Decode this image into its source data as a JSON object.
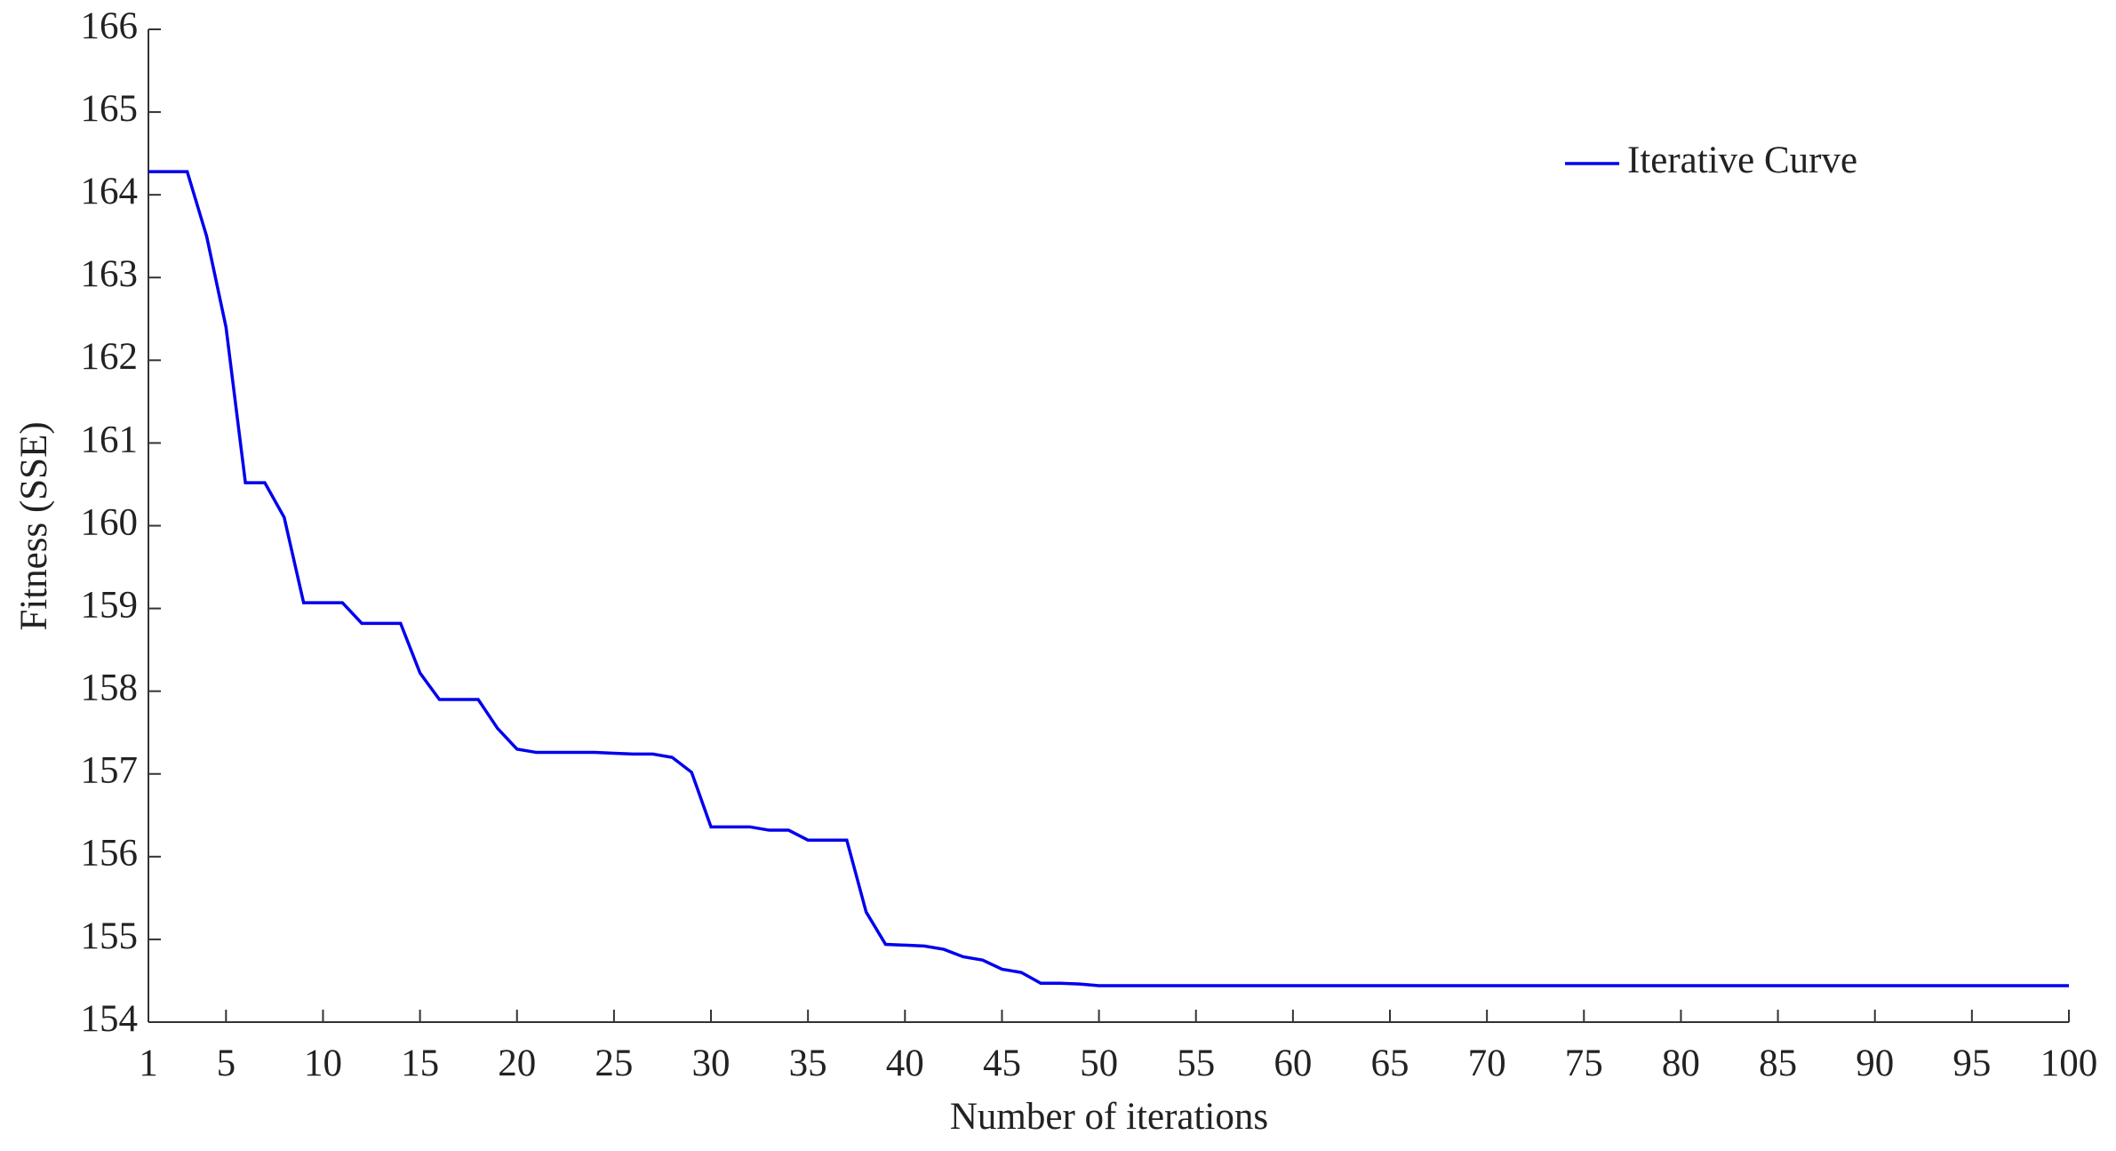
{
  "chart_data": {
    "type": "line",
    "xlabel": "Number of iterations",
    "ylabel": "Fitness  (SSE)",
    "x": [
      1,
      2,
      3,
      4,
      5,
      6,
      7,
      8,
      9,
      10,
      11,
      12,
      13,
      14,
      15,
      16,
      17,
      18,
      19,
      20,
      21,
      22,
      23,
      24,
      25,
      26,
      27,
      28,
      29,
      30,
      31,
      32,
      33,
      34,
      35,
      36,
      37,
      38,
      39,
      40,
      41,
      42,
      43,
      44,
      45,
      46,
      47,
      48,
      49,
      50,
      51,
      52,
      53,
      54,
      55,
      56,
      57,
      58,
      59,
      60,
      61,
      62,
      63,
      64,
      65,
      66,
      67,
      68,
      69,
      70,
      71,
      72,
      73,
      74,
      75,
      76,
      77,
      78,
      79,
      80,
      81,
      82,
      83,
      84,
      85,
      86,
      87,
      88,
      89,
      90,
      91,
      92,
      93,
      94,
      95,
      96,
      97,
      98,
      99,
      100
    ],
    "series": [
      {
        "name": "Iterative Curve",
        "color": "#0000ee",
        "values": [
          164.28,
          164.28,
          164.28,
          163.5,
          162.4,
          160.52,
          160.52,
          160.1,
          159.07,
          159.07,
          159.07,
          158.82,
          158.82,
          158.82,
          158.22,
          157.9,
          157.9,
          157.9,
          157.55,
          157.3,
          157.26,
          157.26,
          157.26,
          157.26,
          157.25,
          157.24,
          157.24,
          157.2,
          157.02,
          156.36,
          156.36,
          156.36,
          156.32,
          156.32,
          156.2,
          156.2,
          156.2,
          155.33,
          154.94,
          154.93,
          154.92,
          154.88,
          154.79,
          154.75,
          154.64,
          154.6,
          154.47,
          154.47,
          154.46,
          154.44,
          154.44,
          154.44,
          154.44,
          154.44,
          154.44,
          154.44,
          154.44,
          154.44,
          154.44,
          154.44,
          154.44,
          154.44,
          154.44,
          154.44,
          154.44,
          154.44,
          154.44,
          154.44,
          154.44,
          154.44,
          154.44,
          154.44,
          154.44,
          154.44,
          154.44,
          154.44,
          154.44,
          154.44,
          154.44,
          154.44,
          154.44,
          154.44,
          154.44,
          154.44,
          154.44,
          154.44,
          154.44,
          154.44,
          154.44,
          154.44,
          154.44,
          154.44,
          154.44,
          154.44,
          154.44,
          154.44,
          154.44,
          154.44,
          154.44,
          154.44
        ]
      }
    ],
    "xlim": [
      1,
      100
    ],
    "xticks": [
      1,
      5,
      10,
      15,
      20,
      25,
      30,
      35,
      40,
      45,
      50,
      55,
      60,
      65,
      70,
      75,
      80,
      85,
      90,
      95,
      100
    ],
    "ylim": [
      154,
      166
    ],
    "yticks": [
      154,
      155,
      156,
      157,
      158,
      159,
      160,
      161,
      162,
      163,
      164,
      165,
      166
    ],
    "legend": "upper right",
    "grid": false
  }
}
